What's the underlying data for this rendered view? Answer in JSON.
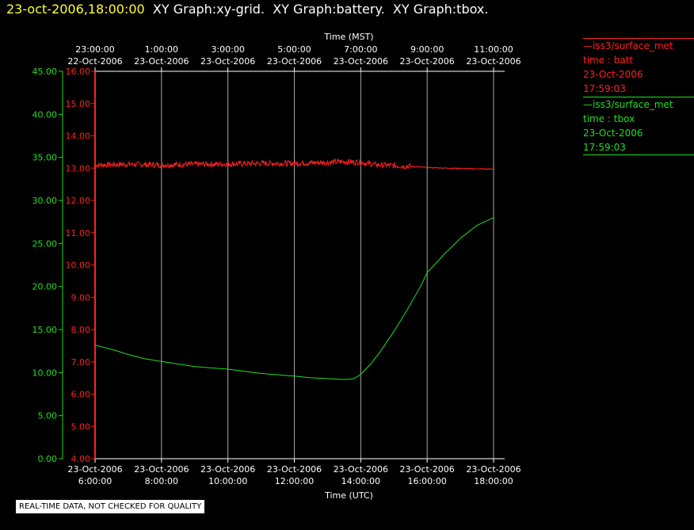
{
  "header": {
    "date": "23-oct-2006,18:00:00",
    "titles": [
      "XY Graph:xy-grid.",
      "XY Graph:battery.",
      "XY Graph:tbox."
    ]
  },
  "footer": "REAL-TIME DATA, NOT CHECKED FOR QUALITY",
  "colors": {
    "batt": "#ff2020",
    "tbox": "#22dd22",
    "grid": "#aaaaaa",
    "axis": "#ffffff",
    "header_date": "#ffff33"
  },
  "legend": [
    {
      "dash": "—",
      "station": "iss3/surface_met",
      "var": "time : batt",
      "date": "23-Oct-2006",
      "time": "17:59:03",
      "color": "#ff2020"
    },
    {
      "dash": "—",
      "station": "iss3/surface_met",
      "var": "time : tbox",
      "date": "23-Oct-2006",
      "time": "17:59:03",
      "color": "#22dd22"
    }
  ],
  "chart_data": {
    "type": "line",
    "x_top_title": "Time (MST)",
    "x_bottom_title": "Time (UTC)",
    "x_range_utc_hours": [
      6,
      18
    ],
    "bottom_ticks": [
      {
        "h": 6,
        "date": "23-Oct-2006",
        "time": "6:00:00"
      },
      {
        "h": 8,
        "date": "23-Oct-2006",
        "time": "8:00:00"
      },
      {
        "h": 10,
        "date": "23-Oct-2006",
        "time": "10:00:00"
      },
      {
        "h": 12,
        "date": "23-Oct-2006",
        "time": "12:00:00"
      },
      {
        "h": 14,
        "date": "23-Oct-2006",
        "time": "14:00:00"
      },
      {
        "h": 16,
        "date": "23-Oct-2006",
        "time": "16:00:00"
      },
      {
        "h": 18,
        "date": "23-Oct-2006",
        "time": "18:00:00"
      }
    ],
    "top_ticks": [
      {
        "h": 6,
        "time": "23:00:00",
        "date": "22-Oct-2006"
      },
      {
        "h": 8,
        "time": "1:00:00",
        "date": "23-Oct-2006"
      },
      {
        "h": 10,
        "time": "3:00:00",
        "date": "23-Oct-2006"
      },
      {
        "h": 12,
        "time": "5:00:00",
        "date": "23-Oct-2006"
      },
      {
        "h": 14,
        "time": "7:00:00",
        "date": "23-Oct-2006"
      },
      {
        "h": 16,
        "time": "9:00:00",
        "date": "23-Oct-2006"
      },
      {
        "h": 18,
        "time": "11:00:00",
        "date": "23-Oct-2006"
      }
    ],
    "y_outer": {
      "range": [
        0,
        45
      ],
      "ticks": [
        "0.00",
        "5.00",
        "10.00",
        "15.00",
        "20.00",
        "25.00",
        "30.00",
        "35.00",
        "40.00",
        "45.00"
      ],
      "color": "#22dd22"
    },
    "y_inner": {
      "range": [
        4,
        16
      ],
      "ticks": [
        "4.00",
        "5.00",
        "6.00",
        "7.00",
        "8.00",
        "9.00",
        "10.00",
        "11.00",
        "12.00",
        "13.00",
        "14.00",
        "15.00",
        "16.00"
      ],
      "color": "#ff2020"
    },
    "series": [
      {
        "key": "batt",
        "axis": "inner",
        "color": "#ff2020",
        "noisy": true,
        "x": [
          6.0,
          7.0,
          8.0,
          9.0,
          10.0,
          11.0,
          12.0,
          13.0,
          13.5,
          14.0,
          14.5,
          15.0,
          15.5,
          16.0,
          17.0,
          18.0
        ],
        "y": [
          13.1,
          13.12,
          13.1,
          13.12,
          13.13,
          13.15,
          13.15,
          13.18,
          13.2,
          13.18,
          13.1,
          13.08,
          13.05,
          13.02,
          12.99,
          12.97
        ]
      },
      {
        "key": "tbox",
        "axis": "outer",
        "color": "#22dd22",
        "noisy": false,
        "x": [
          6.0,
          6.5,
          7.0,
          7.5,
          8.0,
          8.5,
          9.0,
          10.0,
          11.0,
          12.0,
          12.5,
          13.0,
          13.5,
          13.8,
          14.0,
          14.3,
          14.6,
          15.0,
          15.4,
          15.8,
          16.0,
          16.5,
          17.0,
          17.5,
          18.0
        ],
        "y": [
          13.2,
          12.7,
          12.1,
          11.6,
          11.3,
          11.0,
          10.7,
          10.4,
          9.9,
          9.6,
          9.4,
          9.3,
          9.2,
          9.3,
          9.8,
          11.0,
          12.5,
          14.8,
          17.3,
          20.0,
          21.6,
          23.7,
          25.6,
          27.1,
          28.0
        ]
      }
    ]
  }
}
